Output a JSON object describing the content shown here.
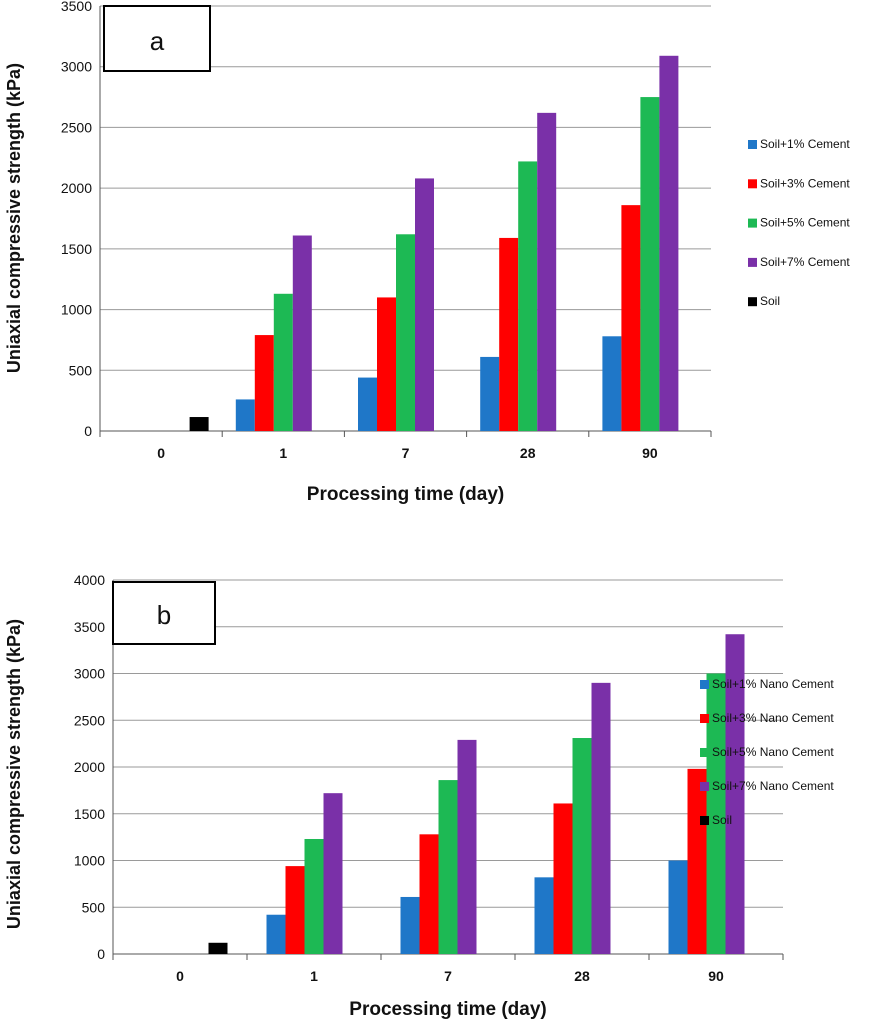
{
  "chart_data": [
    {
      "type": "bar",
      "panel_label": "a",
      "categories": [
        "0",
        "1",
        "7",
        "28",
        "90"
      ],
      "xlabel": "Processing time (day)",
      "ylabel": "Uniaxial compressive strength (kPa)",
      "ylim": [
        0,
        3500
      ],
      "yticks": [
        "0",
        "500",
        "1000",
        "1500",
        "2000",
        "2500",
        "3000",
        "3500"
      ],
      "grid": true,
      "legend_position": "right",
      "series": [
        {
          "name": "Soil+1% Cement",
          "color": "#1f77c8",
          "values": [
            null,
            260,
            440,
            610,
            780
          ]
        },
        {
          "name": "Soil+3% Cement",
          "color": "#ff0000",
          "values": [
            null,
            790,
            1100,
            1590,
            1860
          ]
        },
        {
          "name": "Soil+5% Cement",
          "color": "#1db954",
          "values": [
            null,
            1130,
            1620,
            2220,
            2750
          ]
        },
        {
          "name": "Soil+7% Cement",
          "color": "#7a30a8",
          "values": [
            null,
            1610,
            2080,
            2620,
            3090
          ]
        },
        {
          "name": "Soil",
          "color": "#000000",
          "values": [
            115,
            null,
            null,
            null,
            null
          ]
        }
      ]
    },
    {
      "type": "bar",
      "panel_label": "b",
      "categories": [
        "0",
        "1",
        "7",
        "28",
        "90"
      ],
      "xlabel": "Processing time (day)",
      "ylabel": "Uniaxial compressive strength (kPa)",
      "ylim": [
        0,
        4000
      ],
      "yticks": [
        "0",
        "500",
        "1000",
        "1500",
        "2000",
        "2500",
        "3000",
        "3500",
        "4000"
      ],
      "grid": true,
      "legend_position": "right",
      "series": [
        {
          "name": "Soil+1% Nano Cement",
          "color": "#1f77c8",
          "values": [
            null,
            420,
            610,
            820,
            1000
          ]
        },
        {
          "name": "Soil+3%  Nano Cement",
          "color": "#ff0000",
          "values": [
            null,
            940,
            1280,
            1610,
            1980
          ]
        },
        {
          "name": "Soil+5%  Nano Cement",
          "color": "#1db954",
          "values": [
            null,
            1230,
            1860,
            2310,
            3000
          ]
        },
        {
          "name": "Soil+7%  Nano Cement",
          "color": "#7a30a8",
          "values": [
            null,
            1720,
            2290,
            2900,
            3420
          ]
        },
        {
          "name": "Soil",
          "color": "#000000",
          "values": [
            120,
            null,
            null,
            null,
            null
          ]
        }
      ]
    }
  ]
}
